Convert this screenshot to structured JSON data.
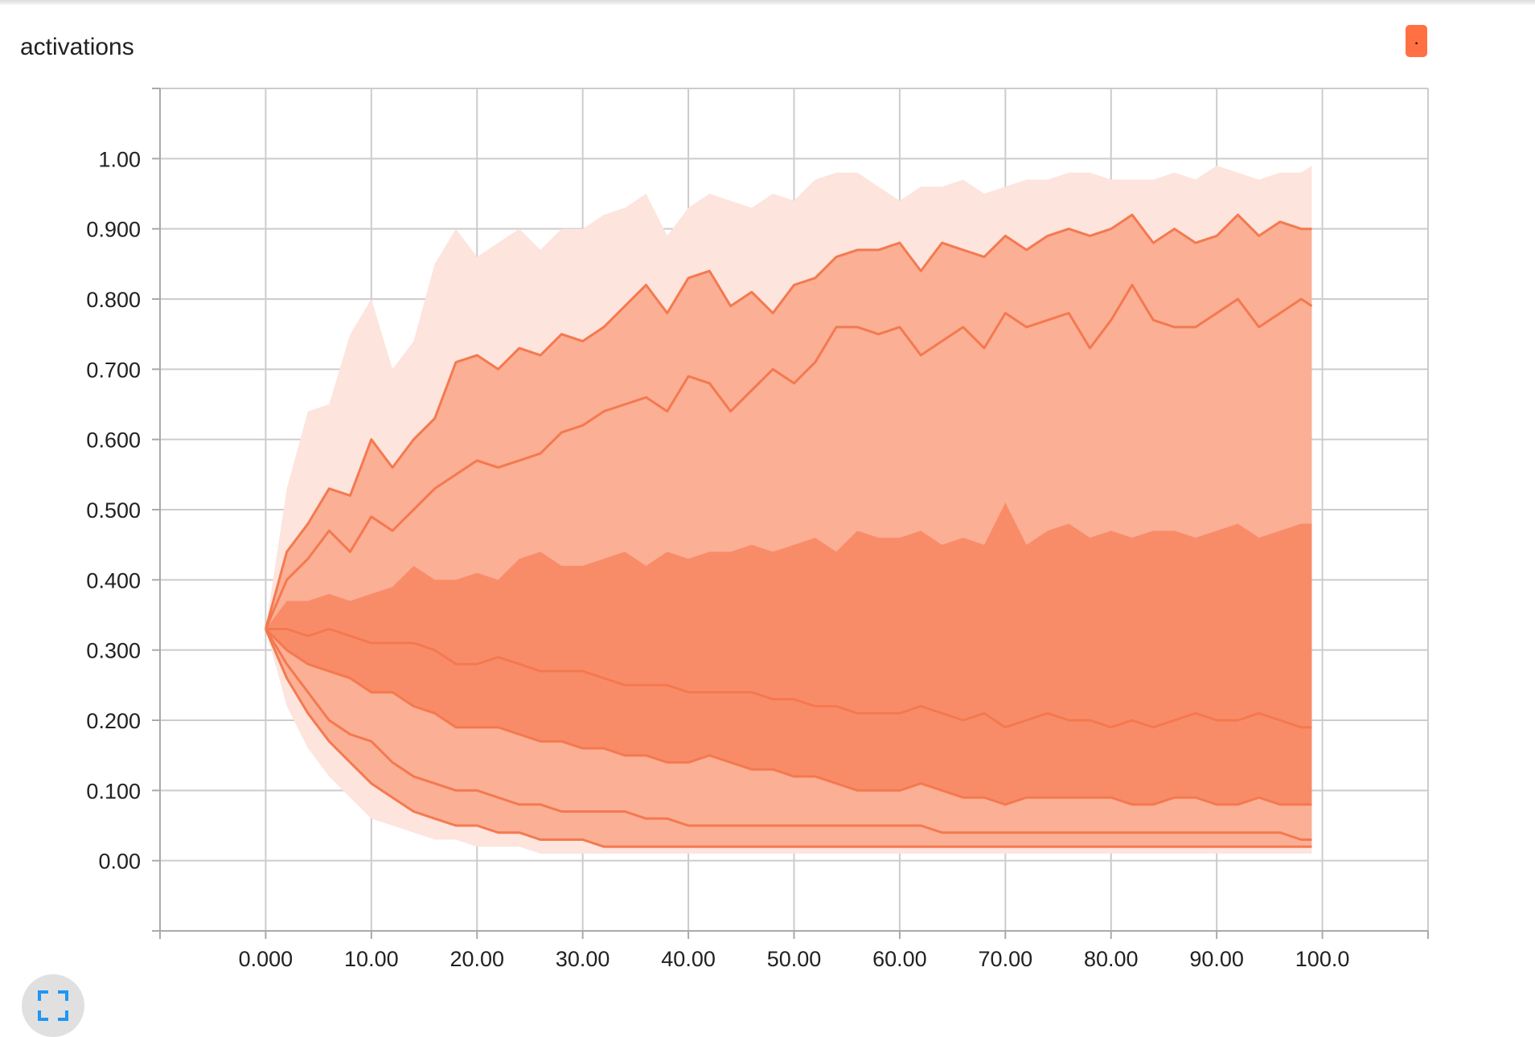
{
  "card": {
    "title": "activations",
    "run_chip_label": "."
  },
  "colors": {
    "accent": "#ff7043",
    "band_outer": "#fde4dc",
    "band_mid": "#fbaf95",
    "band_inner": "#f98c68",
    "line": "#f4794f",
    "grid": "#cccccc"
  },
  "icons": {
    "expand": "fullscreen-expand-icon"
  },
  "chart_data": {
    "type": "area",
    "title": "activations",
    "xlabel": "",
    "ylabel": "",
    "xlim": [
      -10,
      110
    ],
    "ylim": [
      -0.1,
      1.1
    ],
    "x_ticks": [
      "0.000",
      "10.00",
      "20.00",
      "30.00",
      "40.00",
      "50.00",
      "60.00",
      "70.00",
      "80.00",
      "90.00",
      "100.0"
    ],
    "x_tick_values": [
      0,
      10,
      20,
      30,
      40,
      50,
      60,
      70,
      80,
      90,
      100
    ],
    "y_ticks": [
      "0.00",
      "0.100",
      "0.200",
      "0.300",
      "0.400",
      "0.500",
      "0.600",
      "0.700",
      "0.800",
      "0.900",
      "1.00"
    ],
    "y_tick_values": [
      0,
      0.1,
      0.2,
      0.3,
      0.4,
      0.5,
      0.6,
      0.7,
      0.8,
      0.9,
      1.0
    ],
    "grid": true,
    "legend": "none",
    "x": [
      0,
      2,
      4,
      6,
      8,
      10,
      12,
      14,
      16,
      18,
      20,
      22,
      24,
      26,
      28,
      30,
      32,
      34,
      36,
      38,
      40,
      42,
      44,
      46,
      48,
      50,
      52,
      54,
      56,
      58,
      60,
      62,
      64,
      66,
      68,
      70,
      72,
      74,
      76,
      78,
      80,
      82,
      84,
      86,
      88,
      90,
      92,
      94,
      96,
      98,
      99
    ],
    "series": [
      {
        "values": [
          0.33,
          0.53,
          0.64,
          0.65,
          0.75,
          0.8,
          0.7,
          0.74,
          0.85,
          0.9,
          0.86,
          0.88,
          0.9,
          0.87,
          0.9,
          0.9,
          0.92,
          0.93,
          0.95,
          0.89,
          0.93,
          0.95,
          0.94,
          0.93,
          0.95,
          0.94,
          0.97,
          0.98,
          0.98,
          0.96,
          0.94,
          0.96,
          0.96,
          0.97,
          0.95,
          0.96,
          0.97,
          0.97,
          0.98,
          0.98,
          0.97,
          0.97,
          0.97,
          0.98,
          0.97,
          0.99,
          0.98,
          0.97,
          0.98,
          0.98,
          0.99
        ]
      },
      {
        "values": [
          0.33,
          0.44,
          0.48,
          0.53,
          0.52,
          0.6,
          0.56,
          0.6,
          0.63,
          0.71,
          0.72,
          0.7,
          0.73,
          0.72,
          0.75,
          0.74,
          0.76,
          0.79,
          0.82,
          0.78,
          0.83,
          0.84,
          0.79,
          0.81,
          0.78,
          0.82,
          0.83,
          0.86,
          0.87,
          0.87,
          0.88,
          0.84,
          0.88,
          0.87,
          0.86,
          0.89,
          0.87,
          0.89,
          0.9,
          0.89,
          0.9,
          0.92,
          0.88,
          0.9,
          0.88,
          0.89,
          0.92,
          0.89,
          0.91,
          0.9,
          0.9
        ]
      },
      {
        "values": [
          0.33,
          0.4,
          0.43,
          0.47,
          0.44,
          0.49,
          0.47,
          0.5,
          0.53,
          0.55,
          0.57,
          0.56,
          0.57,
          0.58,
          0.61,
          0.62,
          0.64,
          0.65,
          0.66,
          0.64,
          0.69,
          0.68,
          0.64,
          0.67,
          0.7,
          0.68,
          0.71,
          0.76,
          0.76,
          0.75,
          0.76,
          0.72,
          0.74,
          0.76,
          0.73,
          0.78,
          0.76,
          0.77,
          0.78,
          0.73,
          0.77,
          0.82,
          0.77,
          0.76,
          0.76,
          0.78,
          0.8,
          0.76,
          0.78,
          0.8,
          0.79
        ]
      },
      {
        "values": [
          0.33,
          0.37,
          0.37,
          0.38,
          0.37,
          0.38,
          0.39,
          0.42,
          0.4,
          0.4,
          0.41,
          0.4,
          0.43,
          0.44,
          0.42,
          0.42,
          0.43,
          0.44,
          0.42,
          0.44,
          0.43,
          0.44,
          0.44,
          0.45,
          0.44,
          0.45,
          0.46,
          0.44,
          0.47,
          0.46,
          0.46,
          0.47,
          0.45,
          0.46,
          0.45,
          0.51,
          0.45,
          0.47,
          0.48,
          0.46,
          0.47,
          0.46,
          0.47,
          0.47,
          0.46,
          0.47,
          0.48,
          0.46,
          0.47,
          0.48,
          0.48
        ]
      },
      {
        "values": [
          0.33,
          0.33,
          0.32,
          0.33,
          0.32,
          0.31,
          0.31,
          0.31,
          0.3,
          0.28,
          0.28,
          0.29,
          0.28,
          0.27,
          0.27,
          0.27,
          0.26,
          0.25,
          0.25,
          0.25,
          0.24,
          0.24,
          0.24,
          0.24,
          0.23,
          0.23,
          0.22,
          0.22,
          0.21,
          0.21,
          0.21,
          0.22,
          0.21,
          0.2,
          0.21,
          0.19,
          0.2,
          0.21,
          0.2,
          0.2,
          0.19,
          0.2,
          0.19,
          0.2,
          0.21,
          0.2,
          0.2,
          0.21,
          0.2,
          0.19,
          0.19
        ]
      },
      {
        "values": [
          0.33,
          0.3,
          0.28,
          0.27,
          0.26,
          0.24,
          0.24,
          0.22,
          0.21,
          0.19,
          0.19,
          0.19,
          0.18,
          0.17,
          0.17,
          0.16,
          0.16,
          0.15,
          0.15,
          0.14,
          0.14,
          0.15,
          0.14,
          0.13,
          0.13,
          0.12,
          0.12,
          0.11,
          0.1,
          0.1,
          0.1,
          0.11,
          0.1,
          0.09,
          0.09,
          0.08,
          0.09,
          0.09,
          0.09,
          0.09,
          0.09,
          0.08,
          0.08,
          0.09,
          0.09,
          0.08,
          0.08,
          0.09,
          0.08,
          0.08,
          0.08
        ]
      },
      {
        "values": [
          0.33,
          0.28,
          0.24,
          0.2,
          0.18,
          0.17,
          0.14,
          0.12,
          0.11,
          0.1,
          0.1,
          0.09,
          0.08,
          0.08,
          0.07,
          0.07,
          0.07,
          0.07,
          0.06,
          0.06,
          0.05,
          0.05,
          0.05,
          0.05,
          0.05,
          0.05,
          0.05,
          0.05,
          0.05,
          0.05,
          0.05,
          0.05,
          0.04,
          0.04,
          0.04,
          0.04,
          0.04,
          0.04,
          0.04,
          0.04,
          0.04,
          0.04,
          0.04,
          0.04,
          0.04,
          0.04,
          0.04,
          0.04,
          0.04,
          0.03,
          0.03
        ]
      },
      {
        "values": [
          0.33,
          0.26,
          0.21,
          0.17,
          0.14,
          0.11,
          0.09,
          0.07,
          0.06,
          0.05,
          0.05,
          0.04,
          0.04,
          0.03,
          0.03,
          0.03,
          0.02,
          0.02,
          0.02,
          0.02,
          0.02,
          0.02,
          0.02,
          0.02,
          0.02,
          0.02,
          0.02,
          0.02,
          0.02,
          0.02,
          0.02,
          0.02,
          0.02,
          0.02,
          0.02,
          0.02,
          0.02,
          0.02,
          0.02,
          0.02,
          0.02,
          0.02,
          0.02,
          0.02,
          0.02,
          0.02,
          0.02,
          0.02,
          0.02,
          0.02,
          0.02
        ]
      },
      {
        "values": [
          0.33,
          0.22,
          0.16,
          0.12,
          0.09,
          0.06,
          0.05,
          0.04,
          0.03,
          0.03,
          0.02,
          0.02,
          0.02,
          0.01,
          0.01,
          0.01,
          0.01,
          0.01,
          0.01,
          0.01,
          0.01,
          0.01,
          0.01,
          0.01,
          0.01,
          0.01,
          0.01,
          0.01,
          0.01,
          0.01,
          0.01,
          0.01,
          0.01,
          0.01,
          0.01,
          0.01,
          0.01,
          0.01,
          0.01,
          0.01,
          0.01,
          0.01,
          0.01,
          0.01,
          0.01,
          0.01,
          0.01,
          0.01,
          0.01,
          0.01,
          0.01
        ]
      }
    ]
  }
}
